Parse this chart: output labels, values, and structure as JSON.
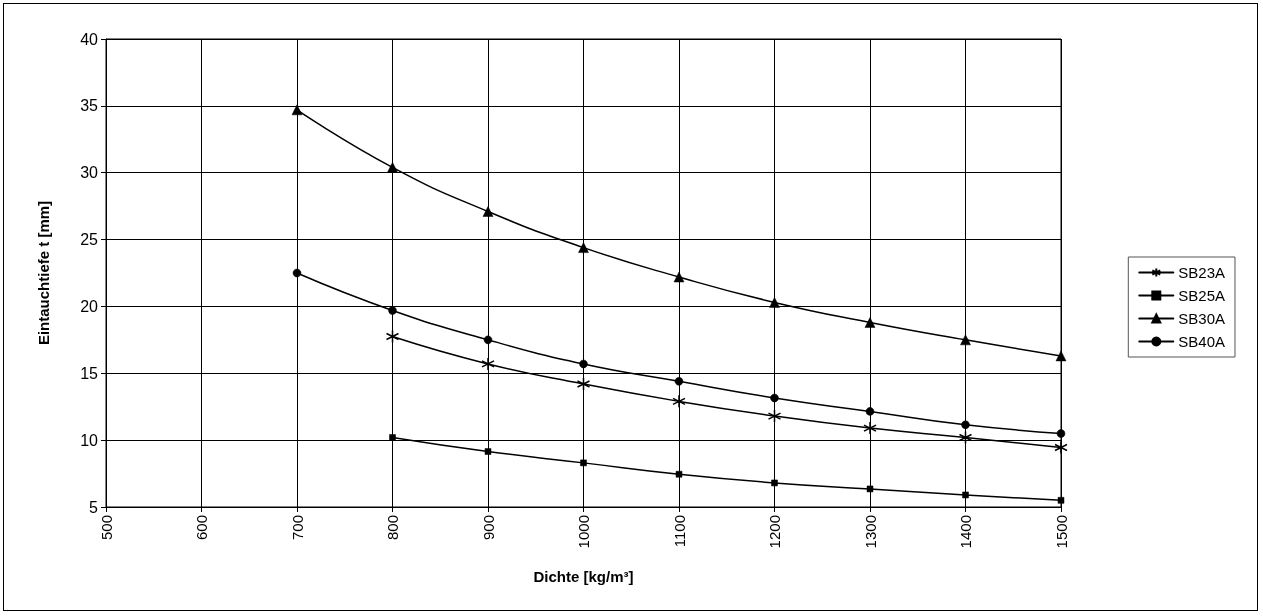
{
  "chart_data": {
    "type": "line",
    "xlabel": "Dichte [kg/m³]",
    "ylabel": "Eintauchtiefe t [mm]",
    "xlim": [
      500,
      1500
    ],
    "xticks": [
      500,
      600,
      700,
      800,
      900,
      1000,
      1100,
      1200,
      1300,
      1400,
      1500
    ],
    "ylim": [
      5,
      40
    ],
    "yticks": [
      5,
      10,
      15,
      20,
      25,
      30,
      35,
      40
    ],
    "grid": true,
    "legend": "right",
    "series": [
      {
        "name": "SB23A",
        "color": "#000000",
        "marker": "cross",
        "x": [
          800,
          900,
          1000,
          1100,
          1200,
          1300,
          1400,
          1500
        ],
        "values": [
          17.75,
          15.7,
          14.2,
          12.9,
          11.8,
          10.9,
          10.2,
          9.45
        ]
      },
      {
        "name": "SB25A",
        "color": "#000000",
        "marker": "square",
        "x": [
          800,
          900,
          1000,
          1100,
          1200,
          1300,
          1400,
          1500
        ],
        "values": [
          10.2,
          9.15,
          8.3,
          7.45,
          6.8,
          6.35,
          5.9,
          5.5
        ]
      },
      {
        "name": "SB30A",
        "color": "#000000",
        "marker": "triangle",
        "x": [
          700,
          800,
          900,
          1000,
          1100,
          1200,
          1300,
          1400,
          1500
        ],
        "values": [
          34.7,
          30.4,
          27.1,
          24.4,
          22.2,
          20.3,
          18.8,
          17.5,
          16.3
        ]
      },
      {
        "name": "SB40A",
        "color": "#000000",
        "marker": "circle",
        "x": [
          700,
          800,
          900,
          1000,
          1100,
          1200,
          1300,
          1400,
          1500
        ],
        "values": [
          22.5,
          19.7,
          17.5,
          15.7,
          14.4,
          13.15,
          12.15,
          11.15,
          10.5
        ]
      }
    ]
  }
}
